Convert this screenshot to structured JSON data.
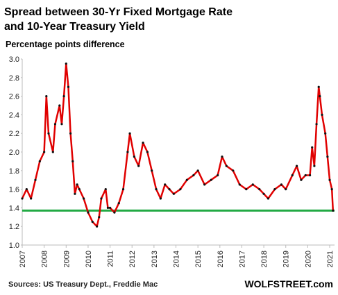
{
  "chart_data": {
    "type": "line",
    "title": "Spread between 30-Yr Fixed Mortgage Rate",
    "title_line2": "and 10-Year Treasury Yield",
    "subtitle": "Percentage points difference",
    "source": "Sources: US Treasury Dept., Freddie Mac",
    "brand": "WOLFSTREET.com",
    "x": [
      2007.0,
      2007.2,
      2007.4,
      2007.6,
      2007.8,
      2008.0,
      2008.1,
      2008.2,
      2008.4,
      2008.5,
      2008.7,
      2008.8,
      2008.9,
      2009.0,
      2009.1,
      2009.2,
      2009.3,
      2009.4,
      2009.5,
      2009.6,
      2009.8,
      2010.0,
      2010.2,
      2010.4,
      2010.5,
      2010.6,
      2010.8,
      2010.9,
      2011.0,
      2011.2,
      2011.4,
      2011.6,
      2011.8,
      2011.9,
      2012.1,
      2012.3,
      2012.5,
      2012.7,
      2012.9,
      2013.1,
      2013.3,
      2013.5,
      2013.7,
      2013.9,
      2014.2,
      2014.5,
      2014.8,
      2015.0,
      2015.3,
      2015.6,
      2015.9,
      2016.1,
      2016.3,
      2016.6,
      2016.9,
      2017.2,
      2017.5,
      2017.8,
      2018.0,
      2018.2,
      2018.5,
      2018.8,
      2019.0,
      2019.3,
      2019.5,
      2019.7,
      2019.9,
      2020.1,
      2020.2,
      2020.3,
      2020.4,
      2020.5,
      2020.55,
      2020.65,
      2020.8,
      2020.9,
      2021.0,
      2021.1,
      2021.15
    ],
    "series": [
      {
        "name": "Spread",
        "color": "#e00000",
        "marker_color": "#111111",
        "values": [
          1.5,
          1.6,
          1.5,
          1.7,
          1.9,
          2.0,
          2.6,
          2.2,
          2.0,
          2.3,
          2.5,
          2.3,
          2.6,
          2.95,
          2.7,
          2.2,
          1.9,
          1.55,
          1.65,
          1.6,
          1.5,
          1.35,
          1.25,
          1.2,
          1.3,
          1.5,
          1.6,
          1.4,
          1.4,
          1.35,
          1.45,
          1.6,
          2.0,
          2.2,
          1.95,
          1.85,
          2.1,
          2.0,
          1.8,
          1.6,
          1.5,
          1.65,
          1.6,
          1.55,
          1.6,
          1.7,
          1.75,
          1.8,
          1.65,
          1.7,
          1.75,
          1.95,
          1.85,
          1.8,
          1.65,
          1.6,
          1.65,
          1.6,
          1.55,
          1.5,
          1.6,
          1.65,
          1.6,
          1.75,
          1.85,
          1.7,
          1.75,
          1.75,
          2.05,
          1.85,
          2.3,
          2.7,
          2.6,
          2.4,
          2.2,
          1.95,
          1.7,
          1.6,
          1.37
        ]
      }
    ],
    "reference_line": {
      "value": 1.37,
      "color": "#22aa44"
    },
    "xlim": [
      2007,
      2021.22
    ],
    "xticks": [
      2007,
      2008,
      2009,
      2010,
      2011,
      2012,
      2013,
      2014,
      2015,
      2016,
      2017,
      2018,
      2019,
      2020,
      2021
    ],
    "ylim": [
      1.0,
      3.0
    ],
    "yticks": [
      {
        "value": 1,
        "label": "1.0"
      },
      {
        "value": 1.2,
        "label": "1.2"
      },
      {
        "value": 1.4,
        "label": "1.4"
      },
      {
        "value": 1.6,
        "label": "1.6"
      },
      {
        "value": 1.8,
        "label": "1.8"
      },
      {
        "value": 2,
        "label": "2.0"
      },
      {
        "value": 2.2,
        "label": "2.2"
      },
      {
        "value": 2.4,
        "label": "2.4"
      },
      {
        "value": 2.6,
        "label": "2.6"
      },
      {
        "value": 2.8,
        "label": "2.8"
      },
      {
        "value": 3,
        "label": "3.0"
      }
    ],
    "grid": false
  }
}
